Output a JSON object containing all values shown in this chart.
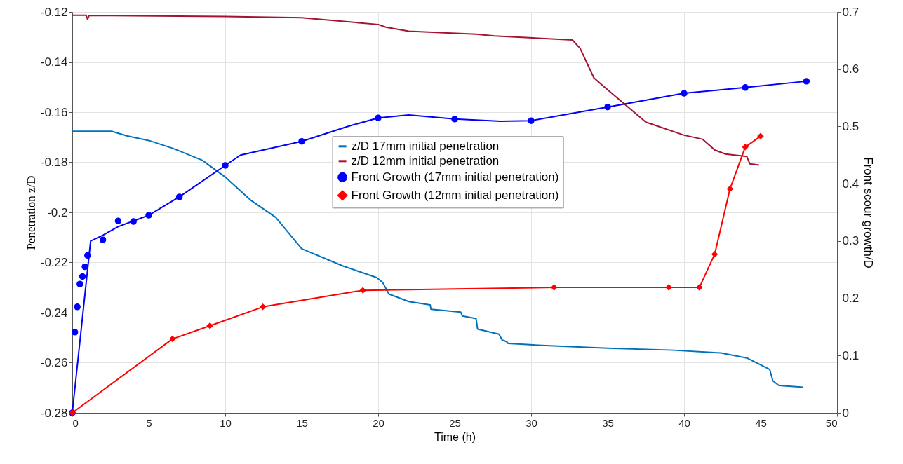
{
  "chart_data": {
    "type": "line",
    "xlabel": "Time (h)",
    "ylabel": "Penetration z/D",
    "y2label": "Front scour growth/D",
    "xlim": [
      0,
      50
    ],
    "xticks": [
      0,
      5,
      10,
      15,
      20,
      25,
      30,
      35,
      40,
      45,
      50
    ],
    "ylim": [
      -0.28,
      -0.12
    ],
    "yticks": [
      -0.28,
      -0.26,
      -0.24,
      -0.22,
      -0.2,
      -0.18,
      -0.16,
      -0.14,
      -0.12
    ],
    "y2lim": [
      0,
      0.7
    ],
    "y2ticks": [
      0,
      0.1,
      0.2,
      0.3,
      0.4,
      0.5,
      0.6,
      0.7
    ],
    "grid": true,
    "legend": "center",
    "series": [
      {
        "name": "z/D 17mm initial penetration",
        "color": "#0072bd",
        "axis": "y",
        "x": [
          0,
          2.57,
          3.6,
          5.0,
          6.6,
          8.5,
          10,
          11.7,
          13.3,
          15,
          17.7,
          19.9,
          20.3,
          20.7,
          22.0,
          23.4,
          23.45,
          25.4,
          25.5,
          26.4,
          26.5,
          27.9,
          28.1,
          28.4,
          28.5,
          30.7,
          35,
          39.3,
          42.4,
          44.1,
          45.6,
          45.8,
          46.2,
          47.8
        ],
        "values": [
          -0.1676,
          -0.1676,
          -0.1695,
          -0.1713,
          -0.1745,
          -0.1792,
          -0.1859,
          -0.1953,
          -0.202,
          -0.2145,
          -0.2214,
          -0.226,
          -0.228,
          -0.2326,
          -0.2356,
          -0.2369,
          -0.2387,
          -0.2398,
          -0.2413,
          -0.2424,
          -0.2466,
          -0.2486,
          -0.2509,
          -0.2516,
          -0.2523,
          -0.2531,
          -0.2542,
          -0.255,
          -0.2561,
          -0.2581,
          -0.2627,
          -0.2672,
          -0.2691,
          -0.2698
        ]
      },
      {
        "name": "z/D 12mm initial penetration",
        "color": "#a2142f",
        "axis": "y",
        "x": [
          0,
          0.9,
          1.0,
          1.1,
          10,
          15,
          20,
          20.5,
          22,
          24.3,
          26.4,
          27.6,
          32.7,
          33.2,
          34.1,
          34.7,
          37.5,
          40,
          41.2,
          42.0,
          42.7,
          44.1,
          44.3,
          44.9
        ],
        "values": [
          -0.1213,
          -0.1213,
          -0.1229,
          -0.1214,
          -0.1218,
          -0.1223,
          -0.125,
          -0.1261,
          -0.1277,
          -0.1283,
          -0.1289,
          -0.1296,
          -0.1312,
          -0.1345,
          -0.1463,
          -0.1495,
          -0.164,
          -0.1692,
          -0.1708,
          -0.1751,
          -0.1767,
          -0.1777,
          -0.1806,
          -0.1811
        ]
      },
      {
        "color": "#0000ff",
        "axis": "y2",
        "x": [
          0,
          1.2,
          2,
          3,
          4,
          5,
          7,
          10,
          11,
          15,
          18,
          20,
          22,
          25,
          28,
          30,
          35,
          40,
          44,
          48
        ],
        "values": [
          0,
          0.3,
          0.31,
          0.325,
          0.335,
          0.345,
          0.377,
          0.432,
          0.45,
          0.474,
          0.5,
          0.515,
          0.52,
          0.513,
          0.509,
          0.51,
          0.534,
          0.558,
          0.568,
          0.579
        ]
      },
      {
        "name": "Front Growth (17mm initial penetration)",
        "color": "#0000ff",
        "type": "scatter",
        "marker": "circle",
        "axis": "y2",
        "x": [
          0,
          0.17,
          0.33,
          0.5,
          0.67,
          0.83,
          1,
          2,
          3,
          4,
          5,
          7,
          10,
          15,
          20,
          25,
          30,
          35,
          40,
          44,
          48
        ],
        "values": [
          0,
          0.141,
          0.185,
          0.225,
          0.238,
          0.255,
          0.275,
          0.302,
          0.335,
          0.334,
          0.345,
          0.377,
          0.432,
          0.474,
          0.515,
          0.513,
          0.51,
          0.534,
          0.558,
          0.568,
          0.579
        ]
      },
      {
        "name": "Front Growth (12mm initial penetration)",
        "color": "#ff0000",
        "marker": "diamond",
        "axis": "y2",
        "x": [
          0,
          6.55,
          9.0,
          12.46,
          19.0,
          31.5,
          39.0,
          41.0,
          42.0,
          43.0,
          44.0,
          45.0
        ],
        "values": [
          0,
          0.129,
          0.152,
          0.185,
          0.214,
          0.219,
          0.219,
          0.219,
          0.277,
          0.391,
          0.464,
          0.483
        ]
      }
    ]
  }
}
